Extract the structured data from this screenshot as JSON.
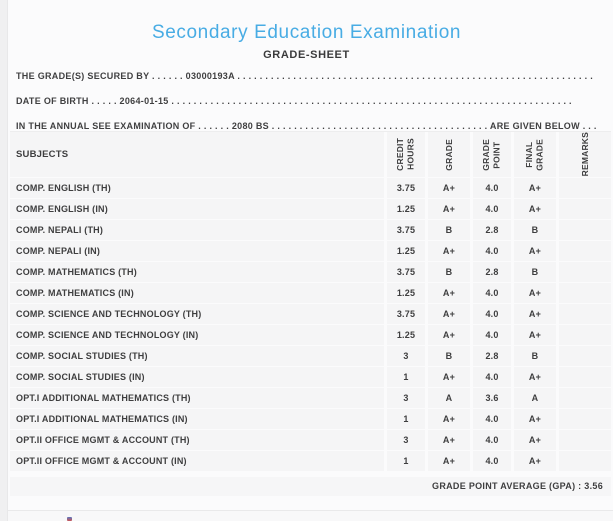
{
  "page": {
    "title": "Secondary Education Examination",
    "subtitle": "GRADE-SHEET"
  },
  "info_lines": [
    {
      "label": "THE GRADE(S) SECURED BY",
      "dots1": " . . . . . . ",
      "value": "03000193A",
      "dots2": " . . . . . . . . . . . . . . . . . . . . . . . . . . . . . . . . . . . . . . . . . . . . . . . . . . . . . . . . . . . . . . . .",
      "suffix": ""
    },
    {
      "label": "DATE OF BIRTH",
      "dots1": " . . . . . ",
      "value": "2064-01-15",
      "dots2": " . . . . . . . . . . . . . . . . . . . . . . . . . . . . . . . . . . . . . . . . . . . . . . . . . . . . . . . . . . . . . . . . . . . . . . . .",
      "suffix": ""
    },
    {
      "label": "IN THE ANNUAL SEE EXAMINATION OF",
      "dots1": " . . . . . . ",
      "value": "2080 BS",
      "dots2": " . . . . . . . . . . . . . . . . . . . . . . . . . . . . . . . . . . . . . . . ",
      "suffix": "ARE GIVEN BELOW . . ."
    }
  ],
  "table": {
    "columns": {
      "subjects": "SUBJECTS",
      "credit_hours": "CREDIT\nHOURS",
      "grade": "GRADE",
      "grade_point": "GRADE\nPOINT",
      "final_grade": "FINAL\nGRADE",
      "remarks": "REMARKS"
    },
    "rows": [
      {
        "subject": "COMP. ENGLISH (TH)",
        "credit_hours": "3.75",
        "grade": "A+",
        "grade_point": "4.0",
        "final_grade": "A+",
        "remarks": ""
      },
      {
        "subject": "COMP. ENGLISH (IN)",
        "credit_hours": "1.25",
        "grade": "A+",
        "grade_point": "4.0",
        "final_grade": "A+",
        "remarks": ""
      },
      {
        "subject": "COMP. NEPALI (TH)",
        "credit_hours": "3.75",
        "grade": "B",
        "grade_point": "2.8",
        "final_grade": "B",
        "remarks": ""
      },
      {
        "subject": "COMP. NEPALI (IN)",
        "credit_hours": "1.25",
        "grade": "A+",
        "grade_point": "4.0",
        "final_grade": "A+",
        "remarks": ""
      },
      {
        "subject": "COMP. MATHEMATICS (TH)",
        "credit_hours": "3.75",
        "grade": "B",
        "grade_point": "2.8",
        "final_grade": "B",
        "remarks": ""
      },
      {
        "subject": "COMP. MATHEMATICS (IN)",
        "credit_hours": "1.25",
        "grade": "A+",
        "grade_point": "4.0",
        "final_grade": "A+",
        "remarks": ""
      },
      {
        "subject": "COMP. SCIENCE AND TECHNOLOGY (TH)",
        "credit_hours": "3.75",
        "grade": "A+",
        "grade_point": "4.0",
        "final_grade": "A+",
        "remarks": ""
      },
      {
        "subject": "COMP. SCIENCE AND TECHNOLOGY (IN)",
        "credit_hours": "1.25",
        "grade": "A+",
        "grade_point": "4.0",
        "final_grade": "A+",
        "remarks": ""
      },
      {
        "subject": "COMP. SOCIAL STUDIES (TH)",
        "credit_hours": "3",
        "grade": "B",
        "grade_point": "2.8",
        "final_grade": "B",
        "remarks": ""
      },
      {
        "subject": "COMP. SOCIAL STUDIES (IN)",
        "credit_hours": "1",
        "grade": "A+",
        "grade_point": "4.0",
        "final_grade": "A+",
        "remarks": ""
      },
      {
        "subject": "OPT.I ADDITIONAL MATHEMATICS (TH)",
        "credit_hours": "3",
        "grade": "A",
        "grade_point": "3.6",
        "final_grade": "A",
        "remarks": ""
      },
      {
        "subject": "OPT.I ADDITIONAL MATHEMATICS (IN)",
        "credit_hours": "1",
        "grade": "A+",
        "grade_point": "4.0",
        "final_grade": "A+",
        "remarks": ""
      },
      {
        "subject": "OPT.II OFFICE MGMT & ACCOUNT (TH)",
        "credit_hours": "3",
        "grade": "A+",
        "grade_point": "4.0",
        "final_grade": "A+",
        "remarks": ""
      },
      {
        "subject": "OPT.II OFFICE MGMT & ACCOUNT (IN)",
        "credit_hours": "1",
        "grade": "A+",
        "grade_point": "4.0",
        "final_grade": "A+",
        "remarks": ""
      }
    ]
  },
  "footer": {
    "gpa_label": "GRADE POINT AVERAGE (GPA) : ",
    "gpa_value": "3.56"
  },
  "colors": {
    "title_blue": "#48ace4",
    "text_dark": "#3e3e3f",
    "cell_background": "#f5f5f6",
    "page_background": "#fbfbfc"
  }
}
